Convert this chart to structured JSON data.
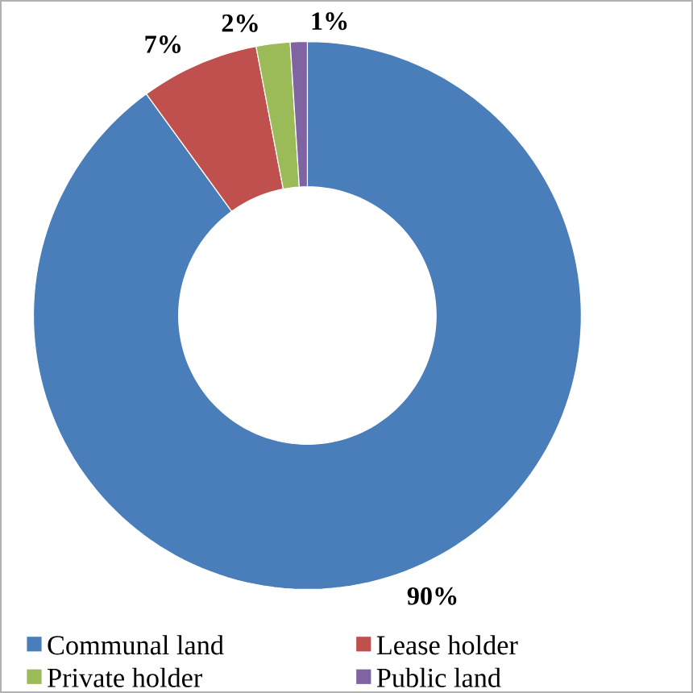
{
  "chart_data": {
    "type": "donut",
    "categories": [
      "Communal land",
      "Lease holder",
      "Private holder",
      "Public land"
    ],
    "values": [
      90,
      7,
      2,
      1
    ],
    "colors": [
      "#4a7ebb",
      "#c0504d",
      "#9bbb59",
      "#8064a2"
    ],
    "value_labels": [
      "90%",
      "7%",
      "2%",
      "1%"
    ],
    "legend": "bottom"
  }
}
